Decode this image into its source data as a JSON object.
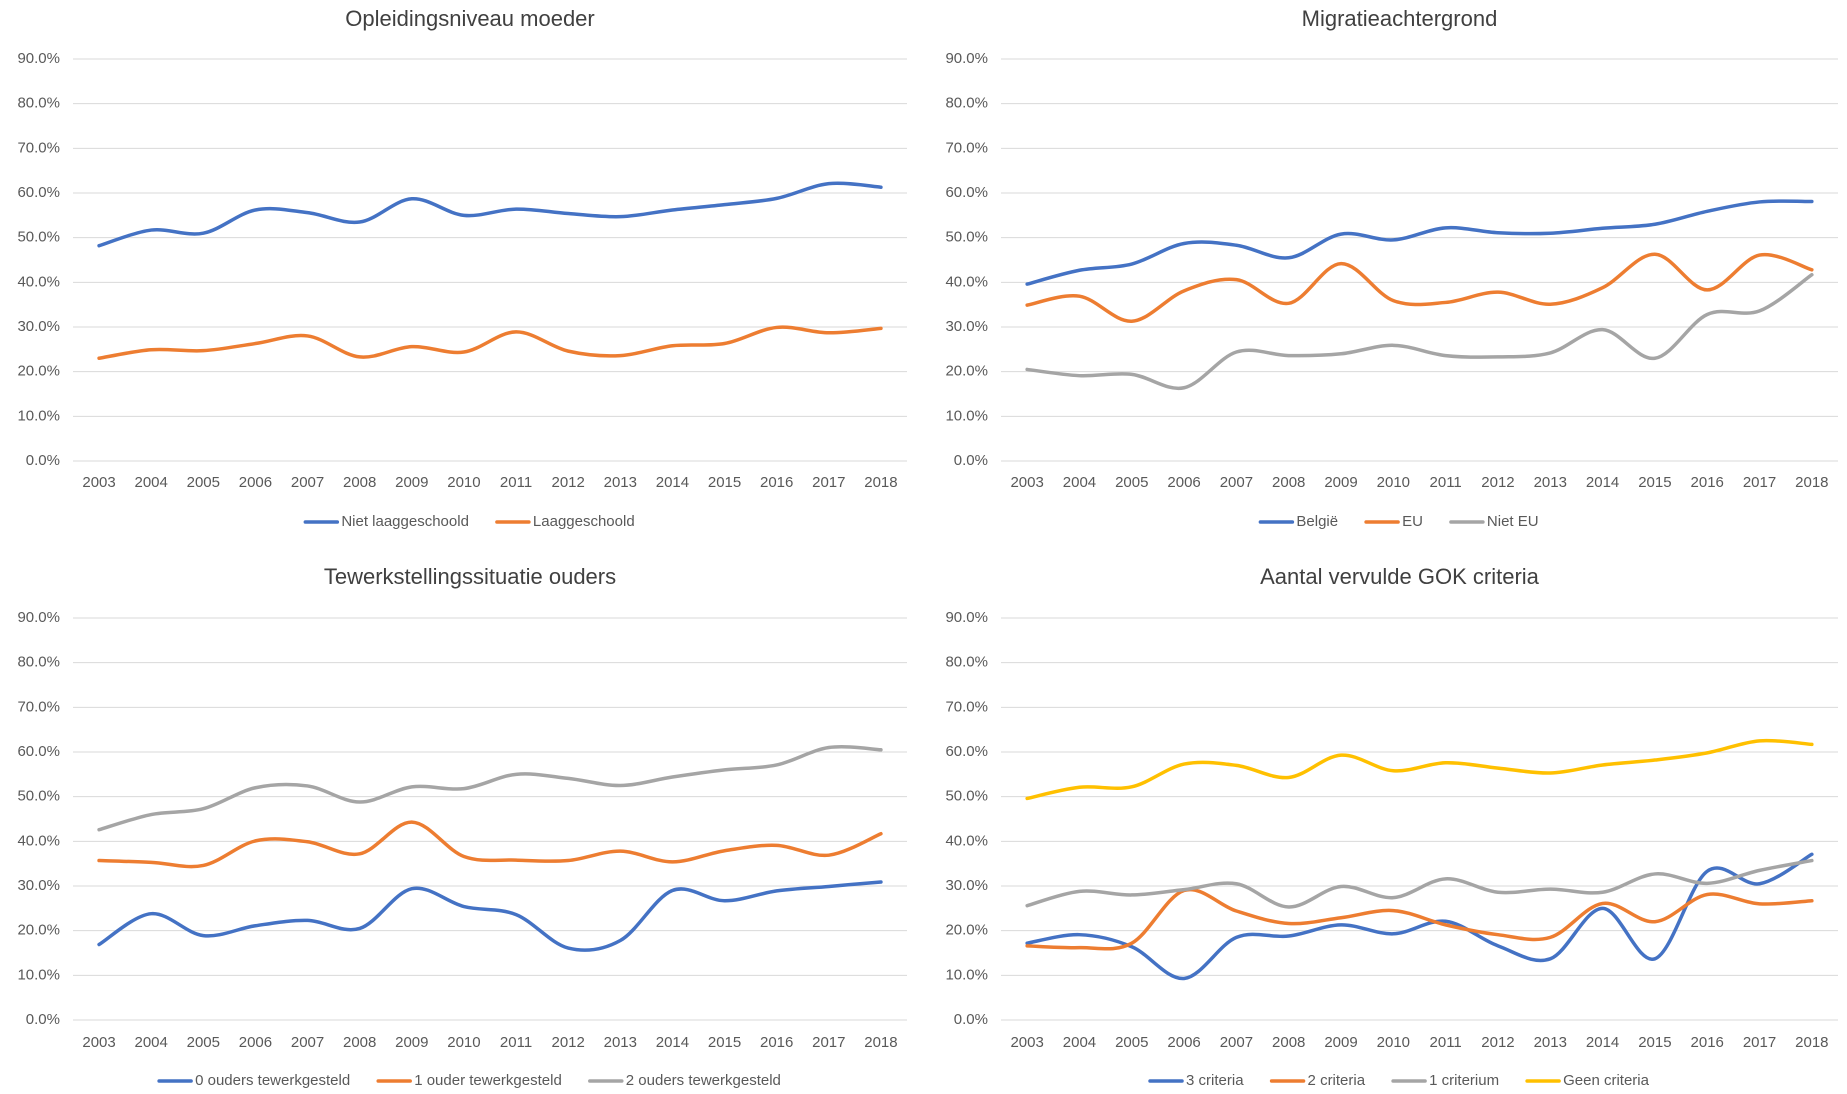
{
  "chart_data": [
    {
      "type": "line",
      "title": "Opleidingsniveau moeder",
      "categories": [
        "2003",
        "2004",
        "2005",
        "2006",
        "2007",
        "2008",
        "2009",
        "2010",
        "2011",
        "2012",
        "2013",
        "2014",
        "2015",
        "2016",
        "2017",
        "2018"
      ],
      "series": [
        {
          "name": "Niet laaggeschoold",
          "color": "#4472c4",
          "values": [
            48.2,
            51.7,
            51,
            56.2,
            55.6,
            53.5,
            58.7,
            55,
            56.4,
            55.4,
            54.7,
            56.2,
            57.4,
            58.8,
            62.1,
            61.3
          ]
        },
        {
          "name": "Laaggeschoold",
          "color": "#ed7d31",
          "values": [
            23,
            24.9,
            24.7,
            26.3,
            28,
            23.3,
            25.6,
            24.4,
            28.9,
            24.6,
            23.6,
            25.8,
            26.3,
            29.9,
            28.7,
            29.7
          ]
        }
      ],
      "ylim": [
        0,
        90
      ],
      "yticks": [
        {
          "value": 0,
          "label": "0.0%"
        },
        {
          "value": 10,
          "label": "10.0%"
        },
        {
          "value": 20,
          "label": "20.0%"
        },
        {
          "value": 30,
          "label": "30.0%"
        },
        {
          "value": 40,
          "label": "40.0%"
        },
        {
          "value": 50,
          "label": "50.0%"
        },
        {
          "value": 60,
          "label": "60.0%"
        },
        {
          "value": 70,
          "label": "70.0%"
        },
        {
          "value": 80,
          "label": "80.0%"
        },
        {
          "value": 90,
          "label": "90.0%"
        }
      ],
      "grid": true,
      "legend": "bottom"
    },
    {
      "type": "line",
      "title": "Migratieachtergrond",
      "categories": [
        "2003",
        "2004",
        "2005",
        "2006",
        "2007",
        "2008",
        "2009",
        "2010",
        "2011",
        "2012",
        "2013",
        "2014",
        "2015",
        "2016",
        "2017",
        "2018"
      ],
      "series": [
        {
          "name": "België",
          "color": "#4472c4",
          "values": [
            39.6,
            42.7,
            44.1,
            48.7,
            48.3,
            45.5,
            50.8,
            49.5,
            52.2,
            51.1,
            51,
            52.1,
            53,
            55.9,
            58,
            58.1
          ]
        },
        {
          "name": "EU",
          "color": "#ed7d31",
          "values": [
            34.9,
            36.9,
            31.3,
            38.1,
            40.6,
            35.3,
            44.2,
            35.9,
            35.5,
            37.8,
            35.1,
            38.8,
            46.3,
            38.3,
            46.1,
            42.8
          ]
        },
        {
          "name": "Niet EU",
          "color": "#a5a5a5",
          "values": [
            20.5,
            19.1,
            19.4,
            16.4,
            24.4,
            23.6,
            24,
            25.9,
            23.6,
            23.3,
            24.2,
            29.4,
            23,
            32.8,
            33.6,
            41.7
          ]
        }
      ],
      "ylim": [
        0,
        90
      ],
      "yticks": [
        {
          "value": 0,
          "label": "0.0%"
        },
        {
          "value": 10,
          "label": "10.0%"
        },
        {
          "value": 20,
          "label": "20.0%"
        },
        {
          "value": 30,
          "label": "30.0%"
        },
        {
          "value": 40,
          "label": "40.0%"
        },
        {
          "value": 50,
          "label": "50.0%"
        },
        {
          "value": 60,
          "label": "60.0%"
        },
        {
          "value": 70,
          "label": "70.0%"
        },
        {
          "value": 80,
          "label": "80.0%"
        },
        {
          "value": 90,
          "label": "90.0%"
        }
      ],
      "grid": true,
      "legend": "bottom"
    },
    {
      "type": "line",
      "title": "Tewerkstellingssituatie ouders",
      "categories": [
        "2003",
        "2004",
        "2005",
        "2006",
        "2007",
        "2008",
        "2009",
        "2010",
        "2011",
        "2012",
        "2013",
        "2014",
        "2015",
        "2016",
        "2017",
        "2018"
      ],
      "series": [
        {
          "name": "0 ouders tewerkgesteld",
          "color": "#4472c4",
          "values": [
            16.9,
            23.8,
            18.9,
            21.1,
            22.3,
            20.5,
            29.4,
            25.4,
            23.6,
            16.1,
            17.8,
            29,
            26.7,
            28.9,
            29.9,
            30.9
          ]
        },
        {
          "name": "1 ouder tewerkgesteld",
          "color": "#ed7d31",
          "values": [
            35.7,
            35.3,
            34.6,
            40.1,
            39.9,
            37.2,
            44.3,
            36.6,
            35.8,
            35.7,
            37.8,
            35.4,
            37.9,
            39.1,
            36.9,
            41.7
          ]
        },
        {
          "name": "2 ouders tewerkgesteld",
          "color": "#a5a5a5",
          "values": [
            42.6,
            46,
            47.3,
            52,
            52.4,
            48.8,
            52.2,
            51.8,
            55,
            54.1,
            52.5,
            54.4,
            56,
            57.1,
            61,
            60.5
          ]
        }
      ],
      "ylim": [
        0,
        90
      ],
      "yticks": [
        {
          "value": 0,
          "label": "0.0%"
        },
        {
          "value": 10,
          "label": "10.0%"
        },
        {
          "value": 20,
          "label": "20.0%"
        },
        {
          "value": 30,
          "label": "30.0%"
        },
        {
          "value": 40,
          "label": "40.0%"
        },
        {
          "value": 50,
          "label": "50.0%"
        },
        {
          "value": 60,
          "label": "60.0%"
        },
        {
          "value": 70,
          "label": "70.0%"
        },
        {
          "value": 80,
          "label": "80.0%"
        },
        {
          "value": 90,
          "label": "90.0%"
        }
      ],
      "grid": true,
      "legend": "bottom"
    },
    {
      "type": "line",
      "title": "Aantal vervulde GOK criteria",
      "categories": [
        "2003",
        "2004",
        "2005",
        "2006",
        "2007",
        "2008",
        "2009",
        "2010",
        "2011",
        "2012",
        "2013",
        "2014",
        "2015",
        "2016",
        "2017",
        "2018"
      ],
      "series": [
        {
          "name": "3 criteria",
          "color": "#4472c4",
          "values": [
            17.2,
            19.1,
            16.4,
            9.3,
            18.5,
            18.8,
            21.3,
            19.3,
            22.1,
            16.6,
            13.7,
            25,
            13.7,
            33.3,
            30.5,
            37.1
          ]
        },
        {
          "name": "2 criteria",
          "color": "#ed7d31",
          "values": [
            16.6,
            16.2,
            17.2,
            29,
            24.4,
            21.6,
            22.9,
            24.5,
            21.3,
            19.1,
            18.5,
            26.1,
            22,
            28.1,
            26,
            26.7
          ]
        },
        {
          "name": "1 criterium",
          "color": "#a5a5a5",
          "values": [
            25.6,
            28.8,
            28,
            29.2,
            30.5,
            25.3,
            29.9,
            27.4,
            31.6,
            28.6,
            29.3,
            28.6,
            32.7,
            30.6,
            33.5,
            35.7
          ]
        },
        {
          "name": "Geen criteria",
          "color": "#ffc000",
          "values": [
            49.6,
            52.1,
            52.2,
            57.3,
            57,
            54.3,
            59.3,
            55.8,
            57.6,
            56.4,
            55.3,
            57.1,
            58.2,
            59.8,
            62.5,
            61.7
          ]
        }
      ],
      "ylim": [
        0,
        90
      ],
      "yticks": [
        {
          "value": 0,
          "label": "0.0%"
        },
        {
          "value": 10,
          "label": "10.0%"
        },
        {
          "value": 20,
          "label": "20.0%"
        },
        {
          "value": 30,
          "label": "30.0%"
        },
        {
          "value": 40,
          "label": "40.0%"
        },
        {
          "value": 50,
          "label": "50.0%"
        },
        {
          "value": 60,
          "label": "60.0%"
        },
        {
          "value": 70,
          "label": "70.0%"
        },
        {
          "value": 80,
          "label": "80.0%"
        },
        {
          "value": 90,
          "label": "90.0%"
        }
      ],
      "grid": true,
      "legend": "bottom"
    }
  ]
}
